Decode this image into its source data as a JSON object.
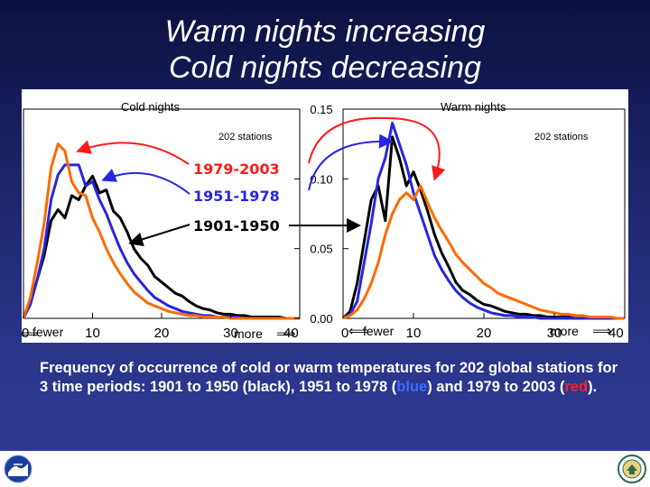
{
  "slide": {
    "title_line1": "Warm nights increasing",
    "title_line2": "Cold nights decreasing",
    "caption_part1": "Frequency of occurrence of cold or warm temperatures for 202 global stations for 3 time periods: 1901 to 1950 (black), 1951 to 1978 (",
    "caption_blue": "blue",
    "caption_part2": ") and 1979 to 2003 (",
    "caption_red": "red",
    "caption_part3": ")."
  },
  "logos": {
    "left": "noaa-logo",
    "right": "commerce-seal"
  },
  "chart_data": [
    {
      "type": "line",
      "title": "Cold nights",
      "annotation": "202 stations",
      "xlim": [
        0,
        40
      ],
      "ylim": [
        0,
        0.15
      ],
      "x_ticks": [
        0,
        10,
        20,
        30,
        40
      ],
      "x_tick_labels": [
        "0",
        "10",
        "20",
        "30",
        "40"
      ],
      "left_annotation": "fewer",
      "right_annotation": "more",
      "x": [
        0,
        1,
        2,
        3,
        4,
        5,
        6,
        7,
        8,
        9,
        10,
        11,
        12,
        13,
        14,
        15,
        16,
        17,
        18,
        19,
        20,
        21,
        22,
        23,
        24,
        25,
        26,
        27,
        28,
        29,
        30,
        31,
        32,
        33,
        34,
        35,
        36,
        37,
        38,
        39,
        40
      ],
      "series": [
        {
          "name": "1901-1950",
          "color": "#000000",
          "values": [
            0.0,
            0.012,
            0.028,
            0.045,
            0.07,
            0.078,
            0.072,
            0.088,
            0.085,
            0.095,
            0.102,
            0.09,
            0.092,
            0.077,
            0.072,
            0.062,
            0.05,
            0.043,
            0.038,
            0.03,
            0.026,
            0.022,
            0.018,
            0.016,
            0.012,
            0.009,
            0.007,
            0.006,
            0.004,
            0.003,
            0.003,
            0.002,
            0.002,
            0.001,
            0.001,
            0.001,
            0.001,
            0.001,
            0,
            0,
            0
          ]
        },
        {
          "name": "1951-1978",
          "color": "#2626e0",
          "values": [
            0.0,
            0.01,
            0.028,
            0.05,
            0.085,
            0.103,
            0.11,
            0.11,
            0.11,
            0.095,
            0.098,
            0.085,
            0.075,
            0.062,
            0.05,
            0.04,
            0.032,
            0.026,
            0.02,
            0.015,
            0.012,
            0.009,
            0.007,
            0.005,
            0.004,
            0.003,
            0.002,
            0.002,
            0.001,
            0.001,
            0.001,
            0.001,
            0,
            0,
            0,
            0,
            0,
            0,
            0,
            0,
            0
          ]
        },
        {
          "name": "1979-2003",
          "color": "#ff6a00",
          "values": [
            0.0,
            0.015,
            0.04,
            0.068,
            0.108,
            0.125,
            0.12,
            0.098,
            0.09,
            0.088,
            0.072,
            0.062,
            0.05,
            0.04,
            0.032,
            0.025,
            0.019,
            0.015,
            0.011,
            0.009,
            0.007,
            0.005,
            0.004,
            0.003,
            0.002,
            0.002,
            0.001,
            0.001,
            0.001,
            0.001,
            0,
            0,
            0,
            0,
            0,
            0,
            0,
            0,
            0,
            0,
            0
          ]
        }
      ],
      "legend_labels": [
        "1979-2003",
        "1951-1978",
        "1901-1950"
      ]
    },
    {
      "type": "line",
      "title": "Warm nights",
      "annotation": "202 stations",
      "xlim": [
        0,
        40
      ],
      "ylim": [
        0,
        0.15
      ],
      "y_ticks": [
        0.0,
        0.05,
        0.1,
        0.15
      ],
      "y_tick_labels": [
        "0.00",
        "0.05",
        "0.10",
        "0.15"
      ],
      "x_ticks": [
        0,
        10,
        20,
        30,
        40
      ],
      "x_tick_labels": [
        "0",
        "10",
        "20",
        "30",
        "40"
      ],
      "left_annotation": "fewer",
      "right_annotation": "more",
      "x": [
        0,
        1,
        2,
        3,
        4,
        5,
        6,
        7,
        8,
        9,
        10,
        11,
        12,
        13,
        14,
        15,
        16,
        17,
        18,
        19,
        20,
        21,
        22,
        23,
        24,
        25,
        26,
        27,
        28,
        29,
        30,
        31,
        32,
        33,
        34,
        35,
        36,
        37,
        38,
        39,
        40
      ],
      "series": [
        {
          "name": "1901-1950",
          "color": "#000000",
          "values": [
            0.0,
            0.005,
            0.025,
            0.055,
            0.085,
            0.095,
            0.07,
            0.13,
            0.115,
            0.095,
            0.105,
            0.092,
            0.077,
            0.06,
            0.047,
            0.037,
            0.026,
            0.02,
            0.017,
            0.013,
            0.01,
            0.009,
            0.007,
            0.005,
            0.004,
            0.003,
            0.003,
            0.002,
            0.002,
            0.001,
            0.001,
            0.001,
            0.001,
            0,
            0,
            0,
            0,
            0,
            0,
            0,
            0
          ]
        },
        {
          "name": "1951-1978",
          "color": "#2626e0",
          "values": [
            0.0,
            0.003,
            0.012,
            0.04,
            0.068,
            0.1,
            0.115,
            0.14,
            0.125,
            0.11,
            0.09,
            0.075,
            0.06,
            0.045,
            0.035,
            0.027,
            0.02,
            0.015,
            0.011,
            0.008,
            0.006,
            0.004,
            0.003,
            0.002,
            0.002,
            0.001,
            0.001,
            0.001,
            0,
            0,
            0,
            0,
            0,
            0,
            0,
            0,
            0,
            0,
            0,
            0,
            0
          ]
        },
        {
          "name": "1979-2003",
          "color": "#ff6a00",
          "values": [
            0.0,
            0.002,
            0.006,
            0.014,
            0.025,
            0.04,
            0.06,
            0.075,
            0.085,
            0.09,
            0.085,
            0.095,
            0.083,
            0.072,
            0.063,
            0.055,
            0.046,
            0.04,
            0.035,
            0.03,
            0.025,
            0.022,
            0.018,
            0.016,
            0.014,
            0.012,
            0.01,
            0.008,
            0.006,
            0.005,
            0.004,
            0.003,
            0.003,
            0.002,
            0.002,
            0.001,
            0.001,
            0.001,
            0.001,
            0,
            0
          ]
        }
      ]
    }
  ]
}
